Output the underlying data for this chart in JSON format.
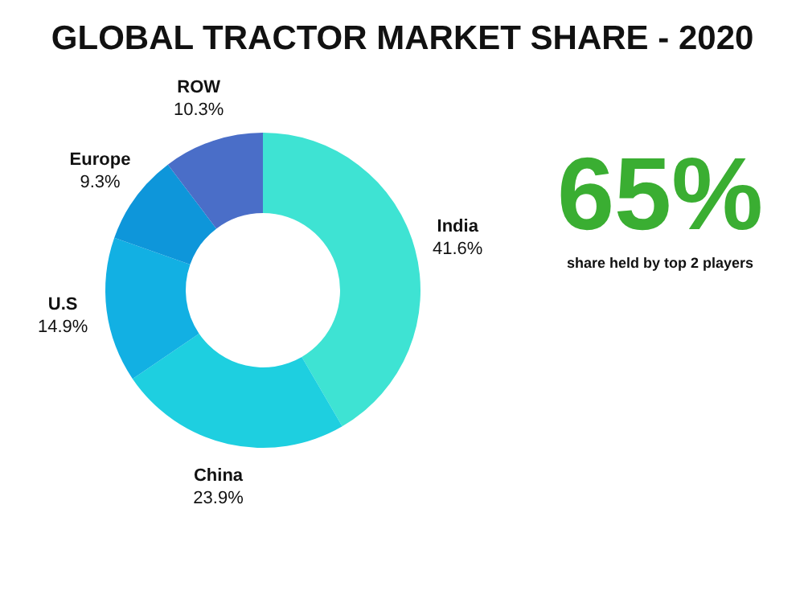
{
  "chart_data": {
    "type": "donut",
    "title": "GLOBAL TRACTOR MARKET SHARE - 2020",
    "categories": [
      "India",
      "China",
      "U.S",
      "Europe",
      "ROW"
    ],
    "values": [
      41.6,
      23.9,
      14.9,
      9.3,
      10.3
    ],
    "value_labels": [
      "41.6%",
      "23.9%",
      "14.9%",
      "9.3%",
      "10.3%"
    ],
    "colors": [
      "#3ee3d3",
      "#1ecfe0",
      "#12b0e3",
      "#0e96da",
      "#4a6ec8"
    ],
    "annotations": [
      "65%",
      "share held by top 2 players"
    ],
    "legend": false
  }
}
